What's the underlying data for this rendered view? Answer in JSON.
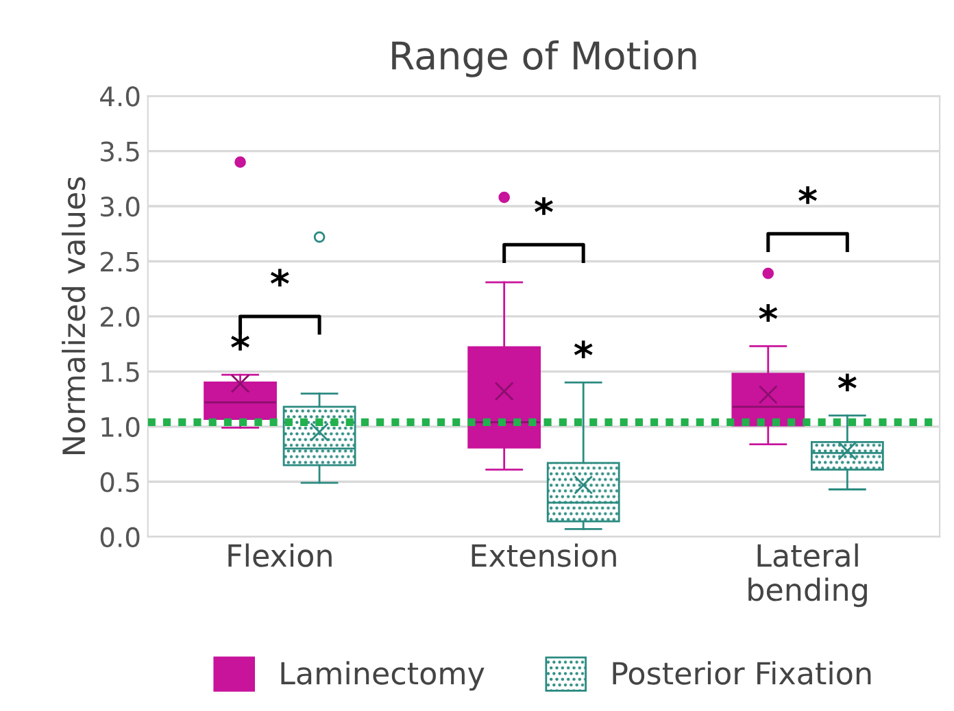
{
  "chart_data": {
    "type": "box",
    "title": "Range of Motion",
    "ylabel": "Normalized values",
    "categories": [
      "Flexion",
      "Extension",
      "Lateral\nbending"
    ],
    "series": [
      {
        "name": "Laminectomy",
        "color": "#c8139b",
        "boxes": [
          {
            "low": 0.99,
            "q1": 1.07,
            "median": 1.22,
            "q3": 1.4,
            "high": 1.47,
            "mean": 1.39,
            "outliers": [
              3.4
            ]
          },
          {
            "low": 0.61,
            "q1": 0.81,
            "median": 1.04,
            "q3": 1.72,
            "high": 2.31,
            "mean": 1.32,
            "outliers": [
              3.08
            ]
          },
          {
            "low": 0.84,
            "q1": 1.01,
            "median": 1.18,
            "q3": 1.48,
            "high": 1.73,
            "mean": 1.29,
            "outliers": [
              2.39
            ]
          }
        ]
      },
      {
        "name": "Posterior Fixation",
        "color": "#2a8a80",
        "boxes": [
          {
            "low": 0.49,
            "q1": 0.65,
            "median": 0.8,
            "q3": 1.18,
            "high": 1.3,
            "mean": 0.95,
            "outliers": [
              2.72
            ]
          },
          {
            "low": 0.07,
            "q1": 0.14,
            "median": 0.31,
            "q3": 0.67,
            "high": 1.4,
            "mean": 0.47
          },
          {
            "low": 0.43,
            "q1": 0.61,
            "median": 0.76,
            "q3": 0.86,
            "high": 1.1,
            "mean": 0.78
          }
        ]
      }
    ],
    "ylim": [
      0,
      4
    ],
    "yticks": [
      {
        "value": 0,
        "label": "0.0"
      },
      {
        "value": 0.5,
        "label": "0.5"
      },
      {
        "value": 1,
        "label": "1.0"
      },
      {
        "value": 1.5,
        "label": "1.5"
      },
      {
        "value": 2,
        "label": "2.0"
      },
      {
        "value": 2.5,
        "label": "2.5"
      },
      {
        "value": 3,
        "label": "3.0"
      },
      {
        "value": 3.5,
        "label": "3.5"
      },
      {
        "value": 4,
        "label": "4.0"
      }
    ],
    "ref_lines": [
      {
        "axis": "y",
        "value": 1.04,
        "color": "#22b14c",
        "line_style": "dotted"
      }
    ],
    "annotations": [
      "*",
      "*",
      "*",
      "*",
      "*",
      "*",
      "*"
    ],
    "grid": "y",
    "legend": "bottom"
  }
}
